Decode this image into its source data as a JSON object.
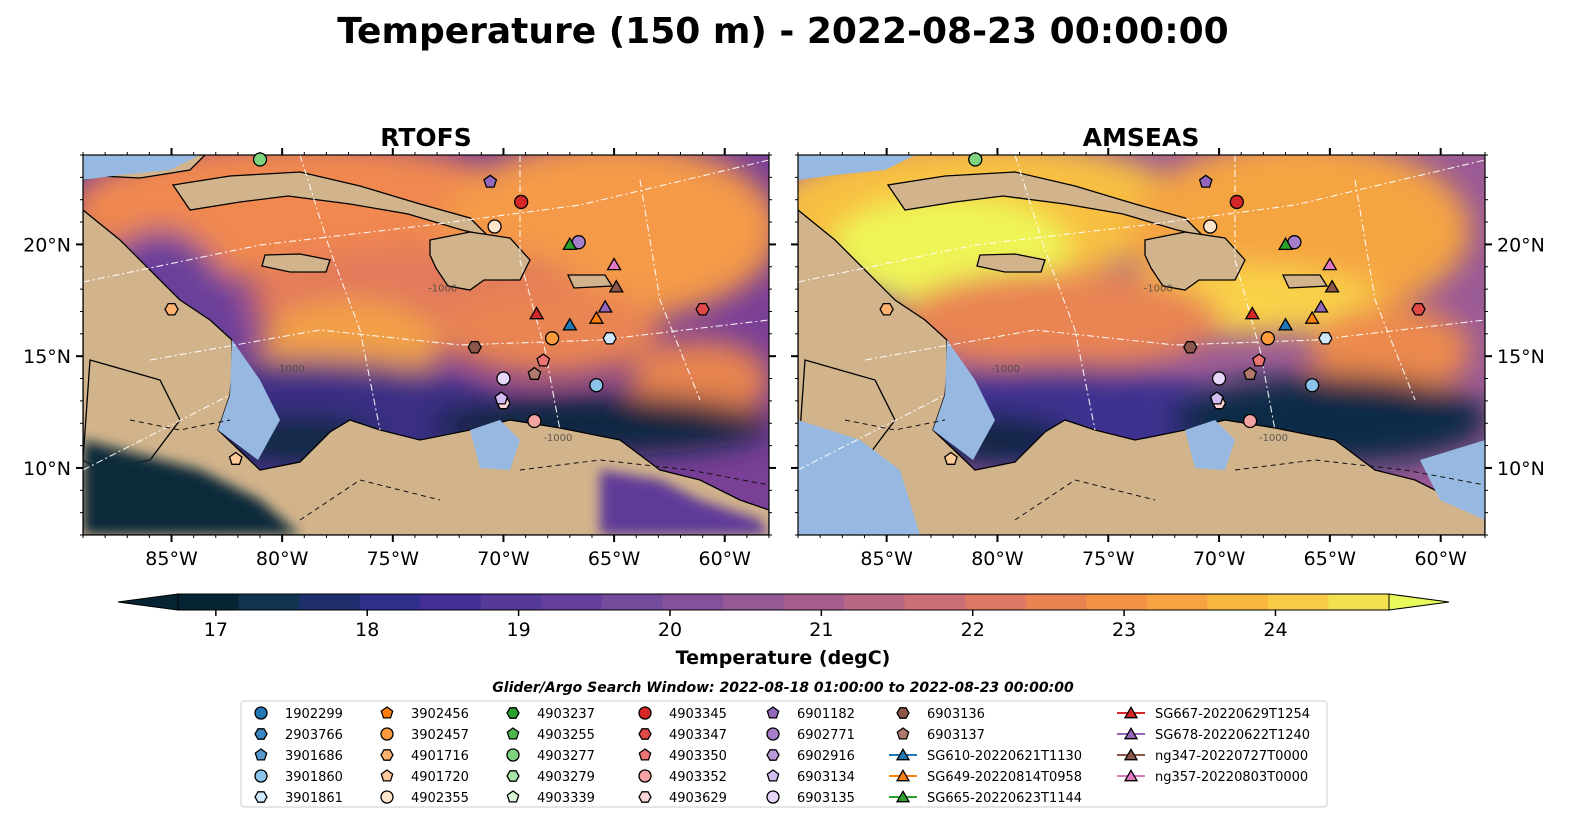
{
  "figure": {
    "title": "Temperature (150 m) - 2022-08-23 00:00:00",
    "search_window": "Glider/Argo Search Window: 2022-08-18 01:00:00 to 2022-08-23 00:00:00"
  },
  "chart_data": {
    "type": "heatmap",
    "panels": [
      {
        "title": "RTOFS",
        "lat_ticks": [
          "10°N",
          "15°N",
          "20°N"
        ],
        "lon_ticks": [
          "85°W",
          "80°W",
          "75°W",
          "70°W",
          "65°W",
          "60°W"
        ],
        "lat_tick_side": "left"
      },
      {
        "title": "AMSEAS",
        "lat_ticks": [
          "10°N",
          "15°N",
          "20°N"
        ],
        "lon_ticks": [
          "85°W",
          "80°W",
          "75°W",
          "70°W",
          "65°W",
          "60°W"
        ],
        "lat_tick_side": "right"
      }
    ],
    "lon_range": [
      -89,
      -58
    ],
    "lat_range": [
      7,
      24
    ],
    "contour_label": "-1000",
    "colorbar": {
      "label": "Temperature (degC)",
      "range": [
        16.75,
        24.75
      ],
      "ticks": [
        17,
        18,
        19,
        20,
        21,
        22,
        23,
        24
      ],
      "tick_labels": [
        "17",
        "18",
        "19",
        "20",
        "21",
        "22",
        "23",
        "24"
      ],
      "extend": "both",
      "colors": [
        "#062433",
        "#10344f",
        "#1f2f6e",
        "#2f2f8c",
        "#432f95",
        "#553a99",
        "#653f9c",
        "#744a9b",
        "#84519a",
        "#955a96",
        "#a65e8f",
        "#b96784",
        "#cb6e76",
        "#dc7864",
        "#e98452",
        "#f39246",
        "#f8a342",
        "#fab740",
        "#f8cb46",
        "#f3e050",
        "#e8fa5b"
      ]
    },
    "markers": [
      {
        "id": "1902299",
        "lon": null,
        "lat": null
      },
      {
        "id": "2903766"
      },
      {
        "id": "3901686"
      },
      {
        "id": "3901860",
        "lon": -65.8,
        "lat": 13.7
      },
      {
        "id": "3901861",
        "lon": -65.2,
        "lat": 15.8
      },
      {
        "id": "3902456"
      },
      {
        "id": "3902457",
        "lon": -67.8,
        "lat": 15.8
      },
      {
        "id": "4901716",
        "lon": -85.0,
        "lat": 17.1
      },
      {
        "id": "4901720",
        "lon": -82.1,
        "lat": 10.4
      },
      {
        "id": "4902355",
        "lon": -70.4,
        "lat": 20.8
      },
      {
        "id": "4903237"
      },
      {
        "id": "4903255"
      },
      {
        "id": "4903277",
        "lon": -81.0,
        "lat": 23.8
      },
      {
        "id": "4903279"
      },
      {
        "id": "4903339"
      },
      {
        "id": "4903345",
        "lon": -69.2,
        "lat": 21.9
      },
      {
        "id": "4903347",
        "lon": -61.0,
        "lat": 17.1
      },
      {
        "id": "4903350",
        "lon": -68.2,
        "lat": 14.8
      },
      {
        "id": "4903352",
        "lon": -68.6,
        "lat": 12.1
      },
      {
        "id": "4903629",
        "lon": -70.0,
        "lat": 12.9
      },
      {
        "id": "6901182",
        "lon": -70.6,
        "lat": 22.8
      },
      {
        "id": "6902771",
        "lon": -66.6,
        "lat": 20.1
      },
      {
        "id": "6902916"
      },
      {
        "id": "6903134",
        "lon": -70.1,
        "lat": 13.1
      },
      {
        "id": "6903135",
        "lon": -70.0,
        "lat": 14.0
      },
      {
        "id": "6903136",
        "lon": -71.3,
        "lat": 15.4
      },
      {
        "id": "6903137",
        "lon": -68.6,
        "lat": 14.2
      },
      {
        "id": "SG610-20220621T1130",
        "lon": -67.0,
        "lat": 16.4
      },
      {
        "id": "SG649-20220814T0958",
        "lon": -65.8,
        "lat": 16.7
      },
      {
        "id": "SG665-20220623T1144",
        "lon": -67.0,
        "lat": 20.0
      },
      {
        "id": "SG667-20220629T1254",
        "lon": -68.5,
        "lat": 16.9
      },
      {
        "id": "SG678-20220622T1240",
        "lon": -65.4,
        "lat": 17.2
      },
      {
        "id": "ng347-20220727T0000",
        "lon": -64.9,
        "lat": 18.1
      },
      {
        "id": "ng357-20220803T0000",
        "lon": -65.0,
        "lat": 19.1
      }
    ],
    "legend": {
      "placement": "bottom-center",
      "columns": [
        [
          {
            "label": "1902299",
            "shape": "circle",
            "color": "#1f77b4"
          },
          {
            "label": "2903766",
            "shape": "hexagon",
            "color": "#3a86c4"
          },
          {
            "label": "3901686",
            "shape": "pentagon",
            "color": "#5599d2"
          },
          {
            "label": "3901860",
            "shape": "circle",
            "color": "#8cc3ea"
          },
          {
            "label": "3901861",
            "shape": "hexagon",
            "color": "#cfe8fb"
          }
        ],
        [
          {
            "label": "3902456",
            "shape": "pentagon",
            "color": "#ff7f0e"
          },
          {
            "label": "3902457",
            "shape": "circle",
            "color": "#ff9a3c"
          },
          {
            "label": "4901716",
            "shape": "hexagon",
            "color": "#ffb26e"
          },
          {
            "label": "4901720",
            "shape": "pentagon",
            "color": "#ffcc99"
          },
          {
            "label": "4902355",
            "shape": "circle",
            "color": "#ffe5cc"
          }
        ],
        [
          {
            "label": "4903237",
            "shape": "hexagon",
            "color": "#2ca02c"
          },
          {
            "label": "4903255",
            "shape": "pentagon",
            "color": "#4cb84c"
          },
          {
            "label": "4903277",
            "shape": "circle",
            "color": "#7fd37f"
          },
          {
            "label": "4903279",
            "shape": "hexagon",
            "color": "#a6e3a6"
          },
          {
            "label": "4903339",
            "shape": "pentagon",
            "color": "#d5f5d5"
          }
        ],
        [
          {
            "label": "4903345",
            "shape": "circle",
            "color": "#d62728"
          },
          {
            "label": "4903347",
            "shape": "hexagon",
            "color": "#e04848"
          },
          {
            "label": "4903350",
            "shape": "pentagon",
            "color": "#ec7474"
          },
          {
            "label": "4903352",
            "shape": "circle",
            "color": "#f4a3a3"
          },
          {
            "label": "4903629",
            "shape": "hexagon",
            "color": "#fbd4d4"
          }
        ],
        [
          {
            "label": "6901182",
            "shape": "pentagon",
            "color": "#9467bd"
          },
          {
            "label": "6902771",
            "shape": "circle",
            "color": "#a57fcb"
          },
          {
            "label": "6902916",
            "shape": "hexagon",
            "color": "#b99adb"
          },
          {
            "label": "6903134",
            "shape": "pentagon",
            "color": "#d2bdf0"
          },
          {
            "label": "6903135",
            "shape": "circle",
            "color": "#e6d6fb"
          }
        ],
        [
          {
            "label": "6903136",
            "shape": "hexagon",
            "color": "#8c564b"
          },
          {
            "label": "6903137",
            "shape": "pentagon",
            "color": "#b07a6d"
          },
          {
            "label": "SG610-20220621T1130",
            "shape": "triangle",
            "color": "#1f77b4"
          },
          {
            "label": "SG649-20220814T0958",
            "shape": "triangle",
            "color": "#ff7f0e"
          },
          {
            "label": "SG665-20220623T1144",
            "shape": "triangle",
            "color": "#2ca02c"
          }
        ],
        [
          {
            "label": "SG667-20220629T1254",
            "shape": "triangle",
            "color": "#d62728"
          },
          {
            "label": "SG678-20220622T1240",
            "shape": "triangle",
            "color": "#9467bd"
          },
          {
            "label": "ng347-20220727T0000",
            "shape": "triangle",
            "color": "#8c564b"
          },
          {
            "label": "ng357-20220803T0000",
            "shape": "triangle",
            "color": "#e377c2"
          }
        ]
      ]
    }
  }
}
